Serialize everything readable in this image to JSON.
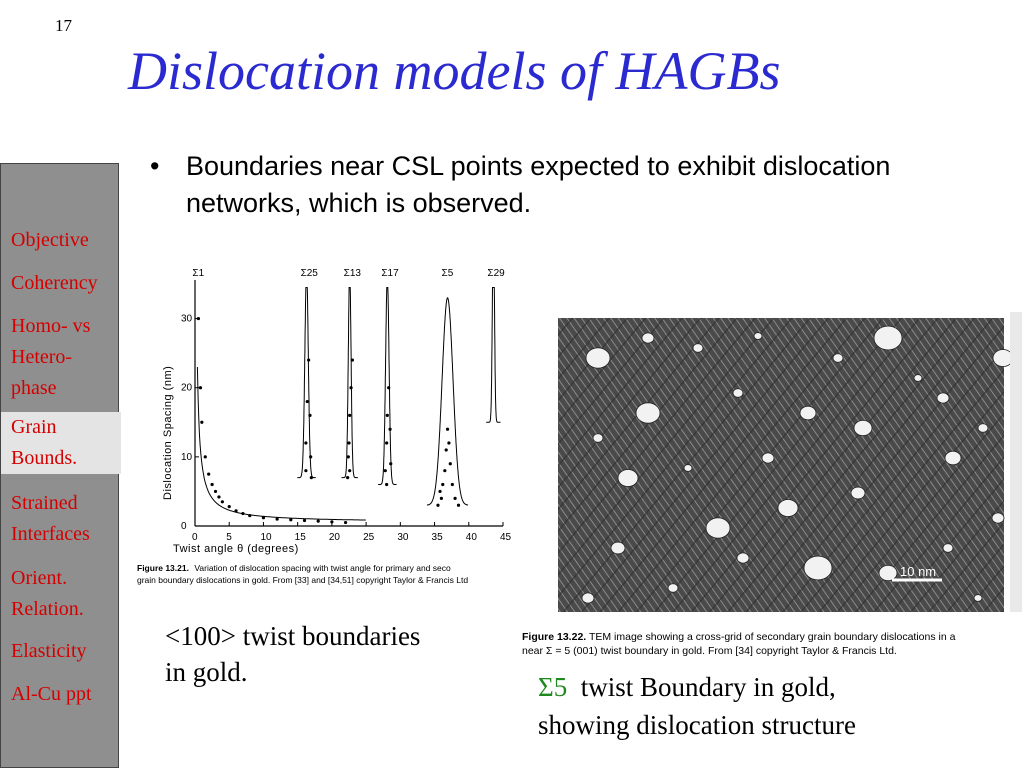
{
  "slide": {
    "number": "17",
    "title": "Dislocation models of HAGBs",
    "bullet": "Boundaries near CSL points expected to exhibit dislocation networks, which is observed."
  },
  "sidebar": {
    "items": [
      {
        "label": "Objective",
        "lines": [
          "Objective"
        ]
      },
      {
        "label": "Coherency",
        "lines": [
          "Coherency"
        ]
      },
      {
        "label": "Homo- vs Hetero-phase",
        "lines": [
          "Homo- vs",
          "Hetero-",
          "phase"
        ]
      },
      {
        "label": "Grain Bounds.",
        "lines": [
          "Grain",
          "Bounds."
        ],
        "active": true
      },
      {
        "label": "Strained Interfaces",
        "lines": [
          "Strained",
          "Interfaces"
        ]
      },
      {
        "label": "Orient. Relation.",
        "lines": [
          "Orient.",
          "Relation."
        ]
      },
      {
        "label": "Elasticity",
        "lines": [
          "Elasticity"
        ]
      },
      {
        "label": "Al-Cu ppt",
        "lines": [
          "Al-Cu ppt"
        ]
      }
    ]
  },
  "figure_left": {
    "ylabel": "Dislocation Spacing (nm)",
    "xlabel": "Twist angle  θ (degrees)",
    "x_ticks": [
      "0",
      "5",
      "10",
      "15",
      "20",
      "25",
      "30",
      "35",
      "40",
      "45"
    ],
    "y_ticks": [
      "0",
      "10",
      "20",
      "30"
    ],
    "peak_labels": [
      "Σ1",
      "Σ25",
      "Σ13",
      "Σ17",
      "Σ5",
      "Σ29"
    ],
    "caption_bold": "Figure 13.21.",
    "caption_line1": "Variation of dislocation spacing with twist angle for primary and seco",
    "caption_line2": "grain boundary dislocations in gold. From [33] and [34,51] copyright Taylor & Francis Ltd"
  },
  "figure_right": {
    "scale_bar": "10 nm",
    "caption_bold": "Figure 13.22.",
    "caption_line1": "TEM image showing a cross-grid of secondary grain boundary dislocations in a",
    "caption_line2": "near Σ = 5 (001) twist boundary in gold. From [34] copyright Taylor & Francis Ltd."
  },
  "captions": {
    "left_line1": "<100> twist boundaries",
    "left_line2": "in gold.",
    "right_sigma": "Σ5",
    "right_line1_rest": "twist Boundary in gold,",
    "right_line2": "showing dislocation structure"
  },
  "chart_data": {
    "type": "scatter",
    "xlabel": "Twist angle θ (degrees)",
    "ylabel": "Dislocation Spacing (nm)",
    "xlim": [
      0,
      45
    ],
    "ylim": [
      0,
      35
    ],
    "annotations": [
      "Σ1",
      "Σ25",
      "Σ13",
      "Σ17",
      "Σ5",
      "Σ29"
    ],
    "series": [
      {
        "x": [
          0.5,
          0.8,
          1,
          1.5,
          2,
          2.5,
          3,
          3.5,
          4,
          5,
          6,
          7,
          8,
          10,
          12,
          14,
          16,
          18,
          20,
          22,
          16.2,
          16.2,
          16.4,
          16.6,
          16.8,
          16.9,
          17.0,
          22.6,
          22.5,
          22.6,
          22.8,
          23.0,
          22.4,
          22.3,
          27.8,
          28.0,
          28.1,
          28.3,
          28.5,
          28.6,
          28.0,
          36.0,
          36.2,
          36.5,
          36.7,
          36.9,
          37.1,
          37.3,
          37.6,
          38.0,
          38.5,
          35.5,
          35.8
        ],
        "y": [
          30,
          20,
          15,
          10,
          7.5,
          6,
          5,
          4.2,
          3.5,
          2.8,
          2.2,
          1.8,
          1.5,
          1.2,
          1.0,
          0.9,
          0.8,
          0.7,
          0.6,
          0.5,
          8,
          12,
          18,
          24,
          16,
          10,
          7,
          8,
          12,
          16,
          20,
          24,
          10,
          7,
          8,
          12,
          16,
          20,
          14,
          9,
          6,
          4,
          6,
          8,
          11,
          14,
          12,
          9,
          6,
          4,
          3,
          3,
          5
        ]
      }
    ]
  }
}
